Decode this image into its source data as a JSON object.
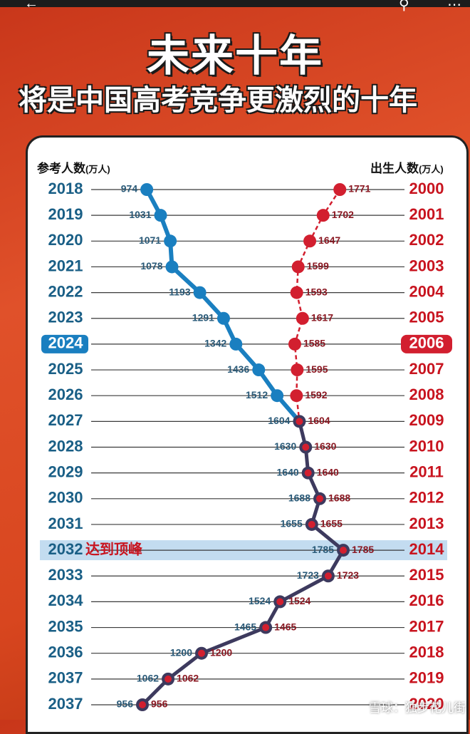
{
  "header": {
    "title": "未来十年",
    "subtitle": "将是中国高考竞争更激烈的十年"
  },
  "column_headers": {
    "left": "参考人数",
    "left_unit": "(万人)",
    "right": "出生人数",
    "right_unit": "(万人)"
  },
  "peak_label": "达到顶峰",
  "watermark": "雪球：独步花儿街",
  "colors": {
    "examinees": "#1a7fc0",
    "projected": "#3d3a5e",
    "births": "#d21f2f",
    "year_left": "#1a5f86",
    "year_right": "#c8141f"
  },
  "chart_data": {
    "type": "line",
    "title": "未来十年 将是中国高考竞争更激烈的十年",
    "exam_years": [
      "2018",
      "2019",
      "2020",
      "2021",
      "2022",
      "2023",
      "2024",
      "2025",
      "2026",
      "2027",
      "2028",
      "2029",
      "2030",
      "2031",
      "2032",
      "2033",
      "2034",
      "2035",
      "2036",
      "2037",
      "2037"
    ],
    "birth_years": [
      "2000",
      "2001",
      "2002",
      "2003",
      "2004",
      "2005",
      "2006",
      "2007",
      "2008",
      "2009",
      "2010",
      "2011",
      "2012",
      "2013",
      "2014",
      "2015",
      "2016",
      "2017",
      "2018",
      "2019",
      "2020"
    ],
    "highlight_index": 6,
    "peak_index": 14,
    "series": [
      {
        "name": "参考人数",
        "unit": "万人",
        "values": [
          974,
          1031,
          1071,
          1078,
          1193,
          1291,
          1342,
          1436,
          1512,
          1604,
          1630,
          1640,
          1688,
          1655,
          1785,
          1723,
          1524,
          1465,
          1200,
          1062,
          956
        ]
      },
      {
        "name": "出生人数",
        "unit": "万人",
        "values": [
          1771,
          1702,
          1647,
          1599,
          1593,
          1617,
          1585,
          1595,
          1592,
          1604,
          1630,
          1640,
          1688,
          1655,
          1785,
          1723,
          1524,
          1465,
          1200,
          1062,
          956
        ]
      }
    ],
    "x_range": [
      900,
      1830
    ],
    "legend": "none",
    "grid": true
  }
}
